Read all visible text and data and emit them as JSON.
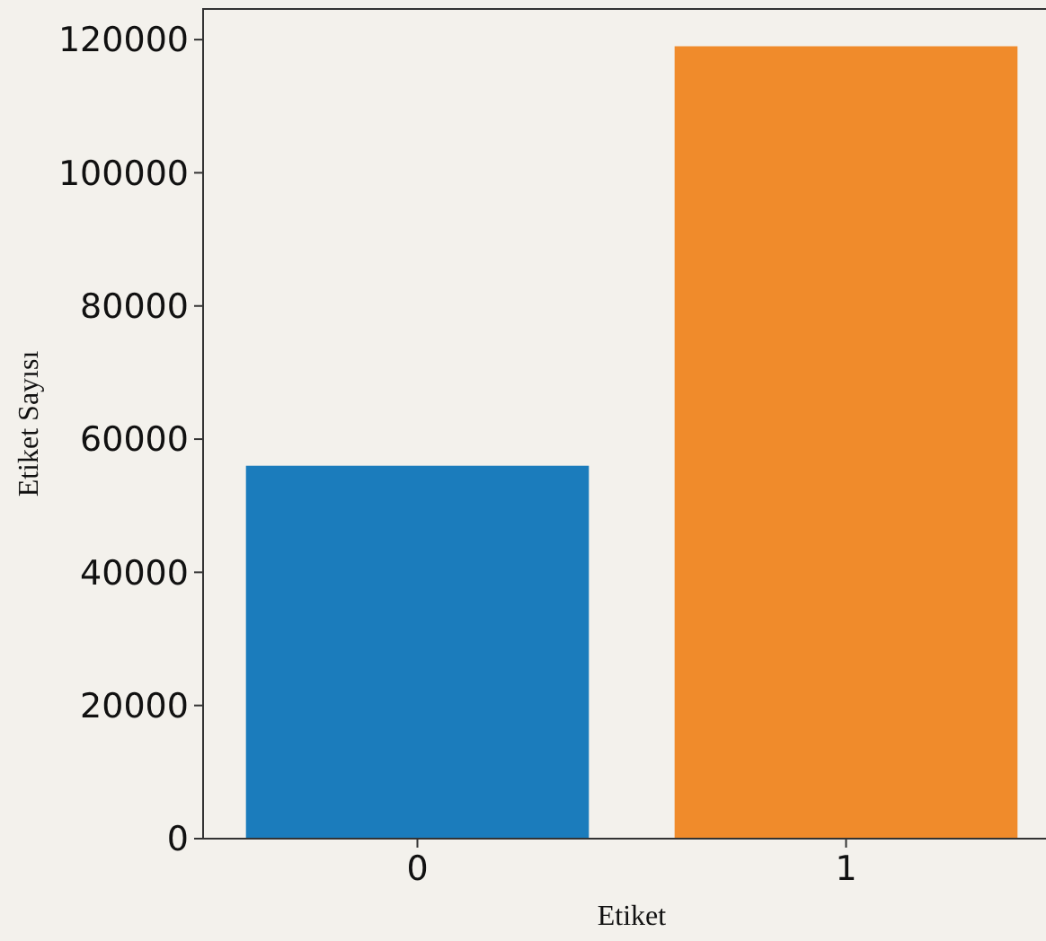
{
  "chart_data": {
    "type": "bar",
    "xlabel": "Etiket",
    "ylabel": "Etiket Sayısı",
    "categories": [
      "0",
      "1"
    ],
    "values": [
      56000,
      119000
    ],
    "colors": [
      "#1b7cbc",
      "#f08b2b"
    ],
    "ylim": [
      0,
      124600
    ],
    "yticks": [
      0,
      20000,
      40000,
      60000,
      80000,
      100000,
      120000
    ],
    "grid": false
  }
}
